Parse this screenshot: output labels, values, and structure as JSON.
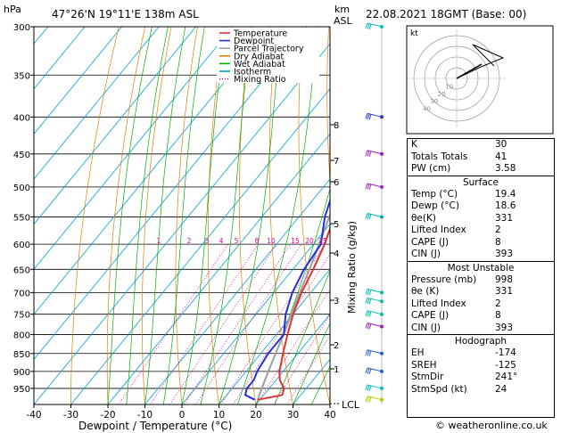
{
  "header": {
    "hpa_label": "hPa",
    "location": "47°26'N  19°11'E  138m  ASL",
    "km_label": "km",
    "asl_label": "ASL",
    "datetime": "22.08.2021  18GMT  (Base: 00)"
  },
  "chart_data": {
    "type": "skew-t",
    "xlabel": "Dewpoint / Temperature (°C)",
    "ylabel_right": "Mixing Ratio (g/kg)",
    "pressure_ticks": [
      300,
      350,
      400,
      450,
      500,
      550,
      600,
      650,
      700,
      750,
      800,
      850,
      900,
      950
    ],
    "temperature_ticks": [
      -40,
      -30,
      -20,
      -10,
      0,
      10,
      20,
      30,
      40
    ],
    "km_ticks": [
      "1",
      "2",
      "3",
      "4",
      "5",
      "6",
      "7",
      "8"
    ],
    "lcl_label": "LCL",
    "mixing_ratio_labels": [
      "1",
      "2",
      "3",
      "4",
      "5",
      "8",
      "10",
      "15",
      "20",
      "25"
    ],
    "legend": [
      "Temperature",
      "Dewpoint",
      "Parcel Trajectory",
      "Dry Adiabat",
      "Wet Adiabat",
      "Isotherm",
      "Mixing Ratio"
    ],
    "colors": {
      "temperature": "#e03030",
      "dewpoint": "#2030e0",
      "parcel": "#a0a0a0",
      "dry_adiabat": "#e08000",
      "wet_adiabat": "#00b000",
      "isotherm": "#00a0e0",
      "mixing_ratio": "#e000a0"
    },
    "series": [
      {
        "name": "Temperature",
        "p": [
          985,
          970,
          950,
          925,
          900,
          850,
          800,
          750,
          700,
          650,
          600,
          550,
          500,
          450,
          400,
          350,
          300
        ],
        "t": [
          19.4,
          25,
          24,
          21,
          19,
          16,
          13,
          10,
          7.5,
          5.5,
          3,
          -0.5,
          -5.5,
          -12,
          -18.5,
          -28,
          -38
        ]
      },
      {
        "name": "Dewpoint",
        "p": [
          985,
          970,
          950,
          925,
          900,
          850,
          800,
          750,
          700,
          650,
          600,
          550,
          500,
          450,
          400,
          350,
          300
        ],
        "t": [
          18.6,
          15,
          14,
          14,
          13,
          12,
          12,
          8,
          5,
          3,
          2,
          -3,
          -7,
          -14,
          -21,
          -31,
          -43
        ]
      },
      {
        "name": "Parcel Trajectory",
        "p": [
          985,
          950,
          900,
          850,
          800,
          750,
          700,
          650,
          600,
          550,
          500,
          450,
          400,
          350,
          300
        ],
        "t": [
          19.4,
          18,
          16,
          14,
          12,
          9.5,
          7,
          4.5,
          1.5,
          -1.8,
          -5.8,
          -10.5,
          -16.5,
          -24.5,
          -34
        ]
      }
    ],
    "hodograph": {
      "label": "kt",
      "ring_labels": [
        "10",
        "20",
        "30",
        "40"
      ]
    }
  },
  "indices": {
    "K": "30",
    "Totals Totals": "41",
    "PW (cm)": "3.58"
  },
  "surface": {
    "title": "Surface",
    "rows": [
      {
        "label": "Temp (°C)",
        "value": "19.4"
      },
      {
        "label": "Dewp (°C)",
        "value": "18.6"
      },
      {
        "label": "θe(K)",
        "value": "331"
      },
      {
        "label": "Lifted Index",
        "value": "2"
      },
      {
        "label": "CAPE (J)",
        "value": "8"
      },
      {
        "label": "CIN (J)",
        "value": "393"
      }
    ]
  },
  "most_unstable": {
    "title": "Most Unstable",
    "rows": [
      {
        "label": "Pressure (mb)",
        "value": "998"
      },
      {
        "label": "θe (K)",
        "value": "331"
      },
      {
        "label": "Lifted Index",
        "value": "2"
      },
      {
        "label": "CAPE (J)",
        "value": "8"
      },
      {
        "label": "CIN (J)",
        "value": "393"
      }
    ]
  },
  "hodograph_params": {
    "title": "Hodograph",
    "rows": [
      {
        "label": "EH",
        "value": "-174"
      },
      {
        "label": "SREH",
        "value": "-125"
      },
      {
        "label": "StmDir",
        "value": "241°"
      },
      {
        "label": "StmSpd (kt)",
        "value": "24"
      }
    ]
  },
  "footer": {
    "copyright": "© weatheronline.co.uk"
  }
}
